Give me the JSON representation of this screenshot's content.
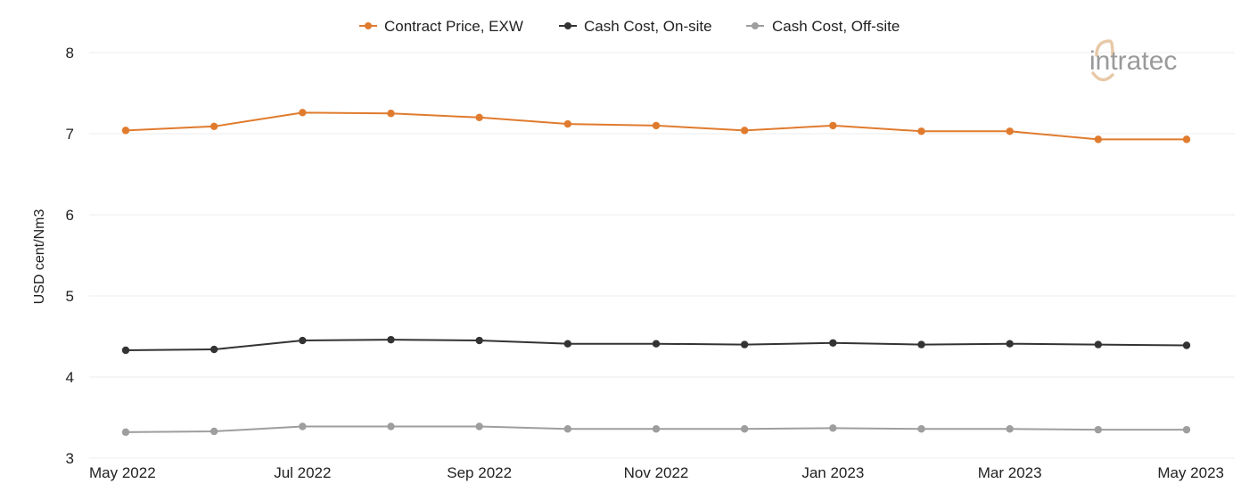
{
  "chart_data": {
    "type": "line",
    "title": "",
    "xlabel": "",
    "ylabel": "USD cent/Nm3",
    "ylim": [
      3,
      8
    ],
    "yticks": [
      "3",
      "4",
      "5",
      "6",
      "7",
      "8"
    ],
    "categories": [
      "May 2022",
      "Jun 2022",
      "Jul 2022",
      "Aug 2022",
      "Sep 2022",
      "Oct 2022",
      "Nov 2022",
      "Dec 2022",
      "Jan 2023",
      "Feb 2023",
      "Mar 2023",
      "Apr 2023",
      "May 2023"
    ],
    "xtick_labels": [
      "May 2022",
      "",
      "Jul 2022",
      "",
      "Sep 2022",
      "",
      "Nov 2022",
      "",
      "Jan 2023",
      "",
      "Mar 2023",
      "",
      "May 2023"
    ],
    "legend_position": "top-center",
    "grid": true,
    "series": [
      {
        "name": "Contract Price, EXW",
        "color": "#e07b2e",
        "values": [
          7.04,
          7.09,
          7.26,
          7.25,
          7.2,
          7.12,
          7.1,
          7.04,
          7.1,
          7.03,
          7.03,
          6.93,
          6.93
        ]
      },
      {
        "name": "Cash Cost, On-site",
        "color": "#333333",
        "values": [
          4.33,
          4.34,
          4.45,
          4.46,
          4.45,
          4.41,
          4.41,
          4.4,
          4.42,
          4.4,
          4.41,
          4.4,
          4.39
        ]
      },
      {
        "name": "Cash Cost, Off-site",
        "color": "#9e9e9e",
        "values": [
          3.32,
          3.33,
          3.39,
          3.39,
          3.39,
          3.36,
          3.36,
          3.36,
          3.37,
          3.36,
          3.36,
          3.35,
          3.35
        ]
      }
    ]
  },
  "logo": {
    "text": "intratec",
    "color": "#9a9a9a",
    "accent": "#e8c9a8"
  }
}
